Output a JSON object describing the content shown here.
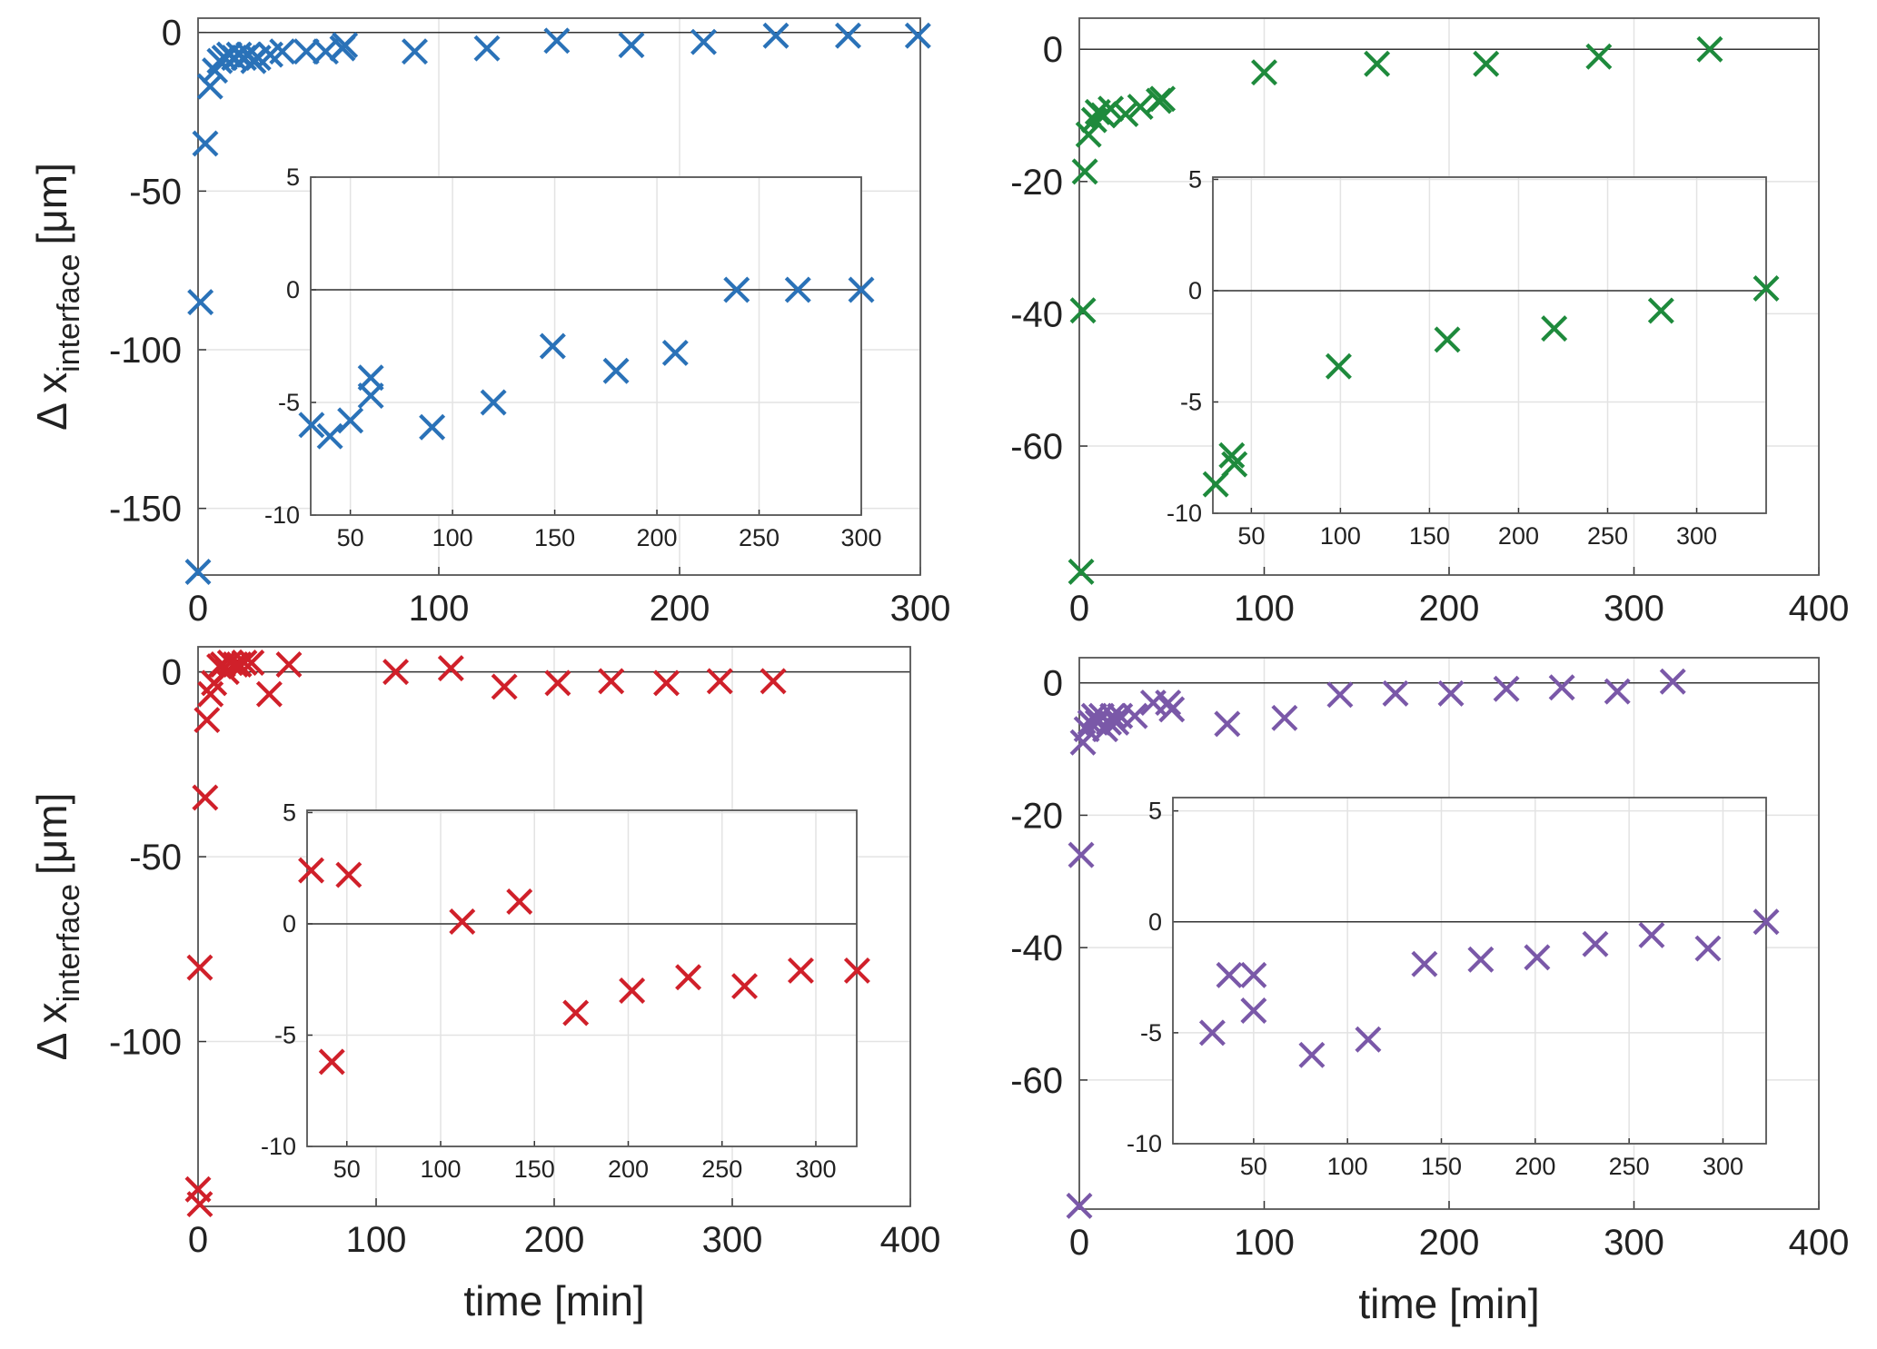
{
  "chart_data": [
    {
      "type": "scatter",
      "color": "#2a72b8",
      "grid": true,
      "hline": 0,
      "ylabel": "Δ x",
      "ylabel_subscript": "interface",
      "ylabel_unit": "[μm]",
      "xlim": [
        0,
        300
      ],
      "ylim": [
        -171,
        4.5
      ],
      "xticks": [
        0,
        100,
        200,
        300
      ],
      "yticks": [
        -150,
        -100,
        -50,
        0
      ],
      "x": [
        0,
        1,
        3,
        5,
        7,
        9,
        11,
        13,
        15,
        17,
        19,
        21,
        23,
        25,
        30,
        35,
        45,
        53,
        60,
        61,
        90,
        120,
        149,
        180,
        210,
        240,
        270,
        299
      ],
      "values": [
        -170,
        -85,
        -35,
        -17,
        -12,
        -9,
        -8,
        -7,
        -8,
        -7,
        -8,
        -7,
        -9,
        -8,
        -7,
        -6,
        -6,
        -6,
        -5,
        -4,
        -6,
        -5,
        -2.6,
        -4,
        -3,
        -1,
        -1,
        -1
      ]
    },
    {
      "type": "scatter",
      "color": "#1e8a3c",
      "grid": true,
      "hline": 0,
      "xlim": [
        0,
        400
      ],
      "ylim": [
        -79.5,
        4.7
      ],
      "xticks": [
        0,
        100,
        200,
        300,
        400
      ],
      "yticks": [
        -60,
        -40,
        -20,
        0
      ],
      "x": [
        1,
        2,
        3,
        5,
        8,
        10,
        13,
        17,
        25,
        33,
        43,
        45,
        100,
        161,
        220,
        281,
        341
      ],
      "values": [
        -79,
        -39.5,
        -18.5,
        -12.9,
        -10.7,
        -9.5,
        -10,
        -9,
        -9.8,
        -8.7,
        -7.8,
        -7.5,
        -3.5,
        -2.2,
        -2.2,
        -1.1,
        0
      ]
    },
    {
      "type": "scatter",
      "color": "#d0202a",
      "grid": true,
      "hline": 0,
      "ylabel": "Δ x",
      "ylabel_subscript": "interface",
      "ylabel_unit": "[μm]",
      "xlabel": "time [min]",
      "xlim": [
        0,
        400
      ],
      "ylim": [
        -144.6,
        6.8
      ],
      "xticks": [
        0,
        100,
        200,
        300,
        400
      ],
      "yticks": [
        -100,
        -50,
        0
      ],
      "x": [
        0,
        1,
        1,
        4,
        5,
        7,
        9,
        12,
        14,
        16,
        18,
        21,
        23,
        26,
        30,
        40,
        51,
        111,
        142,
        172,
        202,
        232,
        263,
        293,
        323
      ],
      "values": [
        -140,
        -144,
        -80,
        -34,
        -13,
        -6,
        -3,
        1.5,
        2,
        0,
        2.5,
        2,
        2,
        2.5,
        2.5,
        -6,
        2,
        0,
        1,
        -4,
        -3,
        -2.5,
        -3,
        -2.5,
        -2.5
      ]
    },
    {
      "type": "scatter",
      "color": "#7a58a8",
      "grid": true,
      "hline": 0,
      "xlabel": "time [min]",
      "xlim": [
        0,
        400
      ],
      "ylim": [
        -79.5,
        3.8
      ],
      "xticks": [
        0,
        100,
        200,
        300,
        400
      ],
      "yticks": [
        -60,
        -40,
        -20,
        0
      ],
      "x": [
        0,
        1,
        2,
        4,
        6,
        8,
        10,
        12,
        14,
        16,
        18,
        20,
        22,
        30,
        40,
        48,
        50,
        80,
        111,
        141,
        171,
        201,
        231,
        261,
        291,
        321
      ],
      "values": [
        -79,
        -26,
        -9,
        -7,
        -6,
        -5,
        -6,
        -5,
        -7,
        -6,
        -5,
        -6,
        -5,
        -5,
        -3,
        -3,
        -4,
        -6.2,
        -5.3,
        -1.8,
        -1.6,
        -1.6,
        -0.9,
        -0.7,
        -1.3,
        0.2
      ]
    },
    {
      "type": "scatter",
      "color": "#2a72b8",
      "grid": true,
      "hline": 0,
      "xlim": [
        30.6,
        300
      ],
      "ylim": [
        -10,
        5
      ],
      "xticks": [
        50,
        100,
        150,
        200,
        250,
        300
      ],
      "yticks": [
        -10,
        -5,
        0,
        5
      ],
      "x": [
        31,
        40,
        50,
        60,
        60,
        90,
        120,
        149,
        180,
        209,
        239,
        269,
        300
      ],
      "values": [
        -6.0,
        -6.5,
        -5.8,
        -3.9,
        -4.7,
        -6.1,
        -5.0,
        -2.5,
        -3.6,
        -2.8,
        0,
        0,
        0
      ]
    },
    {
      "type": "scatter",
      "color": "#1e8a3c",
      "grid": true,
      "hline": 0,
      "xlim": [
        28.4,
        339
      ],
      "ylim": [
        -10,
        5.1
      ],
      "xticks": [
        50,
        100,
        150,
        200,
        250,
        300
      ],
      "yticks": [
        -10,
        -5,
        0,
        5
      ],
      "x": [
        30,
        39,
        40.5,
        99,
        160,
        220,
        280,
        339
      ],
      "values": [
        -8.7,
        -7.4,
        -7.8,
        -3.4,
        -2.2,
        -1.7,
        -0.9,
        0.1
      ]
    },
    {
      "type": "scatter",
      "color": "#d0202a",
      "grid": true,
      "hline": 0,
      "xlim": [
        28.8,
        321.8
      ],
      "ylim": [
        -10,
        5.1
      ],
      "xticks": [
        50,
        100,
        150,
        200,
        250,
        300
      ],
      "yticks": [
        -10,
        -5,
        0,
        5
      ],
      "x": [
        31,
        42,
        51,
        111.5,
        142,
        172,
        202,
        232,
        262,
        292,
        322
      ],
      "values": [
        2.4,
        -6.2,
        2.2,
        0.1,
        1.0,
        -4.0,
        -3.0,
        -2.4,
        -2.8,
        -2.1,
        -2.1
      ]
    },
    {
      "type": "scatter",
      "color": "#7a58a8",
      "grid": true,
      "hline": 0,
      "xlim": [
        7,
        323
      ],
      "ylim": [
        -10,
        5.6
      ],
      "xticks": [
        50,
        100,
        150,
        200,
        250,
        300
      ],
      "yticks": [
        -10,
        -5,
        0,
        5
      ],
      "x": [
        28,
        37,
        50,
        50,
        81,
        111,
        141,
        171,
        201,
        232,
        262,
        292,
        323
      ],
      "values": [
        -5.0,
        -2.4,
        -2.4,
        -4.0,
        -6.0,
        -5.3,
        -1.9,
        -1.7,
        -1.6,
        -1.0,
        -0.6,
        -1.2,
        0
      ]
    }
  ]
}
